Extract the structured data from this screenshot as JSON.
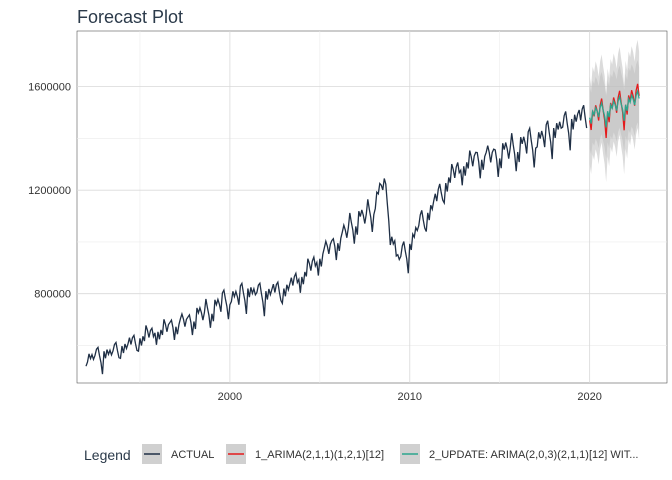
{
  "chart_data": {
    "type": "line",
    "title": "Forecast Plot",
    "xlabel": "",
    "ylabel": "",
    "xlim": [
      1991.5,
      2024.3
    ],
    "ylim": [
      455000,
      1815000
    ],
    "x_ticks": [
      2000,
      2010,
      2020
    ],
    "x_tick_labels": [
      "2000",
      "2010",
      "2020"
    ],
    "y_ticks": [
      800000,
      1200000,
      1600000
    ],
    "y_tick_labels": [
      "800000",
      "1200000",
      "1600000"
    ],
    "y_minor_ticks": [
      600000,
      1000000,
      1400000
    ],
    "grid": true,
    "legend_position": "bottom",
    "legend_title": "Legend",
    "actual_trend": [
      [
        1992.0,
        540000
      ],
      [
        1993.0,
        560000
      ],
      [
        1994.0,
        585000
      ],
      [
        1995.0,
        620000
      ],
      [
        1996.0,
        650000
      ],
      [
        1997.0,
        675000
      ],
      [
        1998.0,
        700000
      ],
      [
        1999.0,
        735000
      ],
      [
        2000.0,
        775000
      ],
      [
        2001.0,
        800000
      ],
      [
        2002.0,
        795000
      ],
      [
        2003.0,
        810000
      ],
      [
        2004.0,
        860000
      ],
      [
        2005.0,
        935000
      ],
      [
        2006.0,
        1000000
      ],
      [
        2007.0,
        1070000
      ],
      [
        2008.0,
        1120000
      ],
      [
        2008.5,
        1230000
      ],
      [
        2009.0,
        1040000
      ],
      [
        2009.3,
        920000
      ],
      [
        2010.0,
        975000
      ],
      [
        2010.5,
        1060000
      ],
      [
        2011.0,
        1100000
      ],
      [
        2012.0,
        1220000
      ],
      [
        2013.0,
        1290000
      ],
      [
        2014.0,
        1320000
      ],
      [
        2015.0,
        1330000
      ],
      [
        2016.0,
        1360000
      ],
      [
        2017.0,
        1380000
      ],
      [
        2018.0,
        1420000
      ],
      [
        2019.0,
        1460000
      ],
      [
        2019.9,
        1480000
      ]
    ],
    "seasonal_pattern": [
      0,
      -25000,
      20000,
      5000,
      30000,
      15000,
      -10000,
      25000,
      40000,
      10000,
      -15000,
      -60000
    ],
    "forecast_start": 2020.0,
    "forecast_end": 2022.8,
    "series": [
      {
        "name": "ACTUAL",
        "color": "#1f2f45",
        "trend": [
          [
            1992.0,
            540000
          ],
          [
            1993.0,
            560000
          ],
          [
            1994.0,
            585000
          ],
          [
            1995.0,
            620000
          ],
          [
            1996.0,
            650000
          ],
          [
            1997.0,
            675000
          ],
          [
            1998.0,
            700000
          ],
          [
            1999.0,
            735000
          ],
          [
            2000.0,
            775000
          ],
          [
            2001.0,
            800000
          ],
          [
            2002.0,
            795000
          ],
          [
            2003.0,
            810000
          ],
          [
            2004.0,
            860000
          ],
          [
            2005.0,
            935000
          ],
          [
            2006.0,
            1000000
          ],
          [
            2007.0,
            1070000
          ],
          [
            2008.0,
            1120000
          ],
          [
            2008.5,
            1230000
          ],
          [
            2009.0,
            1040000
          ],
          [
            2009.3,
            920000
          ],
          [
            2010.0,
            975000
          ],
          [
            2010.5,
            1060000
          ],
          [
            2011.0,
            1100000
          ],
          [
            2012.0,
            1220000
          ],
          [
            2013.0,
            1290000
          ],
          [
            2014.0,
            1320000
          ],
          [
            2015.0,
            1330000
          ],
          [
            2016.0,
            1360000
          ],
          [
            2017.0,
            1380000
          ],
          [
            2018.0,
            1420000
          ],
          [
            2019.0,
            1460000
          ],
          [
            2019.9,
            1480000
          ]
        ]
      },
      {
        "name": "1_ARIMA(2,1,1)(1,2,1)[12]",
        "color": "#e41a1c",
        "trend": [
          [
            2020.0,
            1470000
          ],
          [
            2021.0,
            1500000
          ],
          [
            2022.0,
            1530000
          ],
          [
            2022.8,
            1550000
          ]
        ],
        "interval": [
          -170000,
          170000
        ]
      },
      {
        "name": "2_UPDATE: ARIMA(2,0,3)(2,1,1)[12] WIT...",
        "color": "#2ca58d",
        "trend": [
          [
            2020.0,
            1480000
          ],
          [
            2021.0,
            1505000
          ],
          [
            2022.0,
            1530000
          ],
          [
            2022.8,
            1545000
          ]
        ],
        "interval": [
          -120000,
          120000
        ]
      }
    ],
    "ribbon_color": "#bdbdbd"
  }
}
